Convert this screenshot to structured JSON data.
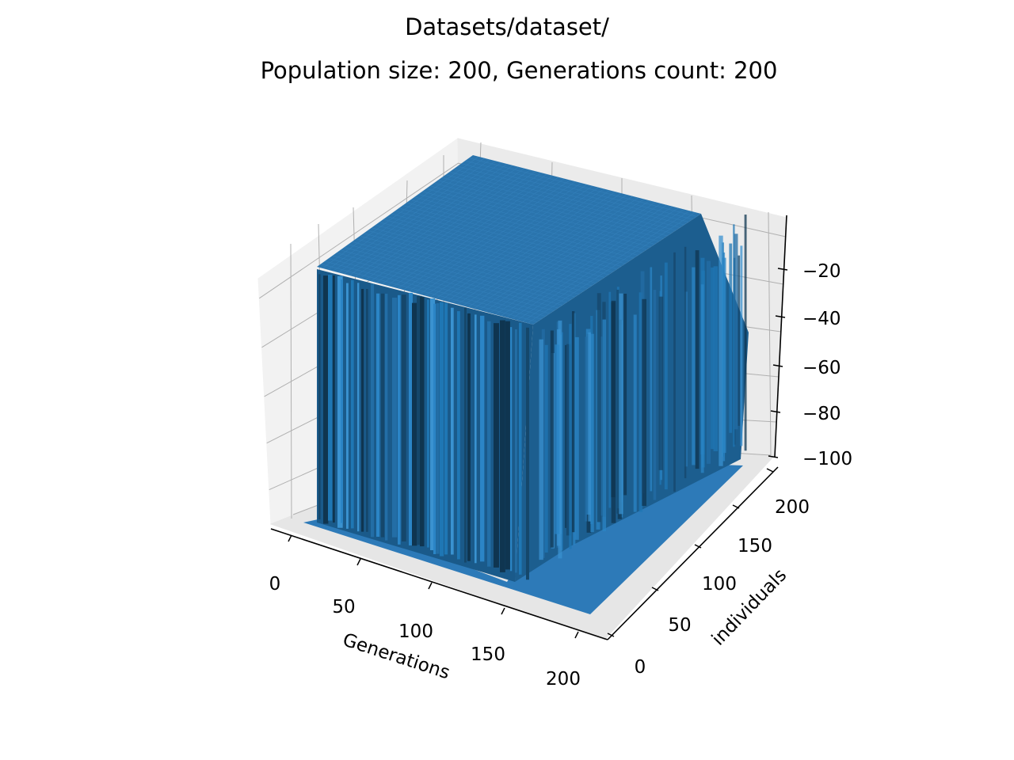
{
  "chart_data": {
    "type": "surface3d",
    "title": "Datasets/dataset/",
    "subtitle": "Population size: 200, Generations count: 200",
    "xlabel": "Generations",
    "ylabel": "individuals",
    "zlabel": "",
    "xlim": [
      0,
      200
    ],
    "ylim": [
      0,
      200
    ],
    "zlim": [
      -100,
      -5
    ],
    "x_ticks": [
      "0",
      "50",
      "100",
      "150",
      "200"
    ],
    "y_ticks": [
      "0",
      "50",
      "100",
      "150",
      "200"
    ],
    "z_ticks": [
      "−20",
      "−40",
      "−60",
      "−80",
      "−100"
    ],
    "grid": true,
    "surface_color": "#1f77b4",
    "plateau_value": -5,
    "floor_value": -100
  }
}
